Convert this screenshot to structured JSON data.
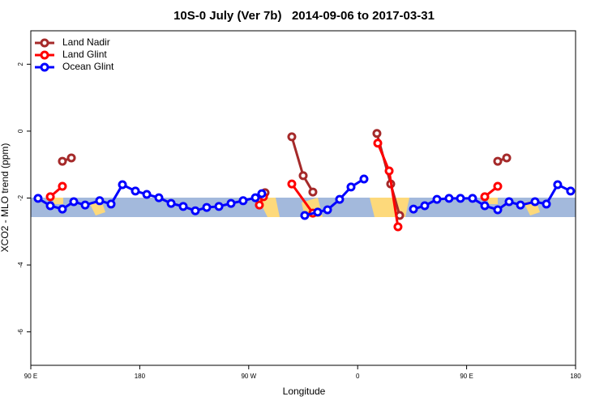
{
  "chart_data": {
    "type": "line",
    "title": "10S-0 July (Ver 7b)   2014-09-06 to 2017-03-31",
    "x_label": "Longitude",
    "y_label": "XCO2 - MLO trend (ppm)",
    "xlim": [
      90,
      540
    ],
    "xticks": [
      {
        "value": 90,
        "label": "90 E"
      },
      {
        "value": 180,
        "label": "180"
      },
      {
        "value": 270,
        "label": "90 W"
      },
      {
        "value": 360,
        "label": "0"
      },
      {
        "value": 450,
        "label": "90 E"
      },
      {
        "value": 540,
        "label": "180"
      }
    ],
    "ylim": [
      -7,
      3
    ],
    "yticks": [
      -6,
      -4,
      -2,
      0,
      2
    ],
    "legend": "top-left",
    "series": [
      {
        "name": "Land Nadir",
        "color": "#a52a2a",
        "x": [
          116.1,
          123.5,
          null,
          283.5,
          null,
          305.6,
          315.0,
          323.0,
          null,
          375.9,
          387.3,
          394.7,
          null,
          475.7,
          483.1
        ],
        "values": [
          -0.9,
          -0.8,
          null,
          -1.84,
          null,
          -0.17,
          -1.33,
          -1.82,
          null,
          -0.07,
          -1.58,
          -2.52,
          null,
          -0.9,
          -0.8
        ]
      },
      {
        "name": "Land Glint",
        "color": "#ff0000",
        "x": [
          106.1,
          116.1,
          null,
          278.8,
          282.2,
          null,
          305.6,
          323.0,
          null,
          376.6,
          386.0,
          393.3,
          null,
          465.0,
          475.7
        ],
        "values": [
          -1.96,
          -1.65,
          null,
          -2.21,
          -1.96,
          null,
          -1.58,
          -2.45,
          null,
          -0.36,
          -1.19,
          -2.86,
          null,
          -1.96,
          -1.65
        ]
      },
      {
        "name": "Ocean Glint",
        "color": "#0000ff",
        "x": [
          96.0,
          106.1,
          116.1,
          125.5,
          134.9,
          146.9,
          156.3,
          165.7,
          176.4,
          185.8,
          195.8,
          205.9,
          215.9,
          225.9,
          235.3,
          245.4,
          255.4,
          265.4,
          275.5,
          280.8,
          null,
          316.3,
          327.0,
          335.1,
          345.1,
          354.5,
          365.2,
          null,
          406.1,
          415.4,
          425.5,
          435.5,
          444.9,
          454.9,
          465.0,
          475.7,
          485.1,
          494.5,
          506.5,
          515.9,
          525.2,
          535.9
        ],
        "values": [
          -2.01,
          -2.23,
          -2.33,
          -2.11,
          -2.21,
          -2.08,
          -2.18,
          -1.6,
          -1.79,
          -1.89,
          -1.99,
          -2.16,
          -2.25,
          -2.38,
          -2.28,
          -2.25,
          -2.16,
          -2.08,
          -1.99,
          -1.87,
          null,
          -2.52,
          -2.42,
          -2.35,
          -2.04,
          -1.67,
          -1.43,
          null,
          -2.33,
          -2.23,
          -2.04,
          -2.01,
          -2.01,
          -2.01,
          -2.23,
          -2.35,
          -2.11,
          -2.21,
          -2.11,
          -2.18,
          -1.6,
          -1.79
        ]
      }
    ]
  }
}
